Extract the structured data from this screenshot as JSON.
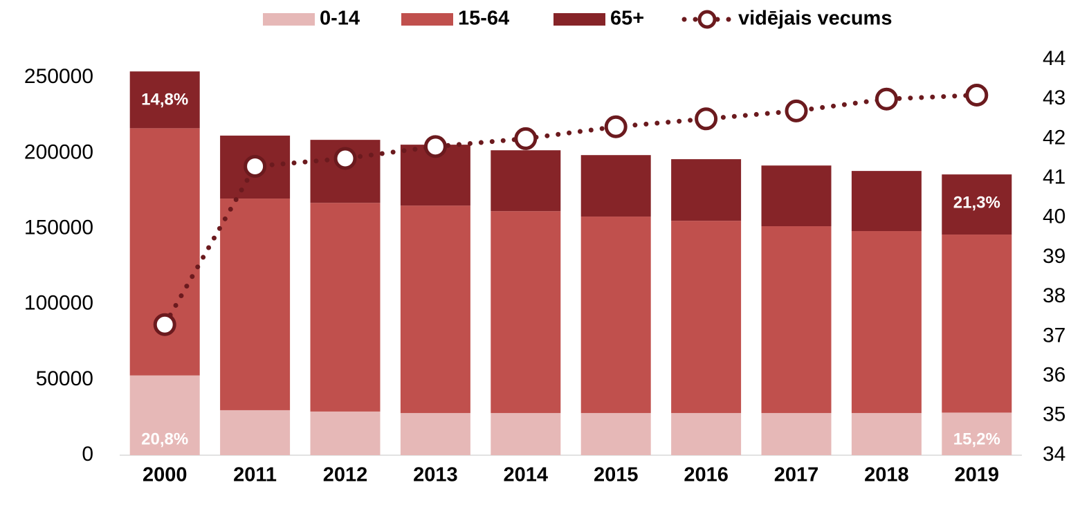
{
  "chart_data": {
    "type": "bar",
    "stacked": true,
    "categories": [
      "2000",
      "2011",
      "2012",
      "2013",
      "2014",
      "2015",
      "2016",
      "2017",
      "2018",
      "2019"
    ],
    "series": [
      {
        "name": "0-14",
        "color": "#e6b8b7",
        "values": [
          52800,
          29800,
          28900,
          27900,
          27900,
          27900,
          27900,
          27900,
          27900,
          28200
        ],
        "percent_labels": [
          "20,8%",
          null,
          null,
          null,
          null,
          null,
          null,
          null,
          null,
          "15,2%"
        ]
      },
      {
        "name": "15-64",
        "color": "#c0504d",
        "values": [
          163700,
          140100,
          138200,
          137400,
          133700,
          130100,
          127300,
          123700,
          120500,
          117900
        ]
      },
      {
        "name": "65+",
        "color": "#862428",
        "values": [
          37600,
          41700,
          41700,
          40300,
          40300,
          40700,
          40800,
          40200,
          39800,
          39800
        ],
        "percent_labels": [
          "14,8%",
          null,
          null,
          null,
          null,
          null,
          null,
          null,
          null,
          "21,3%"
        ]
      },
      {
        "name": "vidējais vecums",
        "type": "line",
        "axis": "y2",
        "color": "#6b1a1e",
        "values": [
          37.3,
          41.3,
          41.5,
          41.8,
          42.0,
          42.3,
          42.5,
          42.7,
          43.0,
          43.1
        ]
      }
    ],
    "ylim": [
      0,
      262000
    ],
    "yticks": [
      0,
      50000,
      100000,
      150000,
      200000,
      250000
    ],
    "y2lim": [
      34,
      44
    ],
    "y2ticks": [
      34,
      35,
      36,
      37,
      38,
      39,
      40,
      41,
      42,
      43,
      44
    ],
    "legend": "top",
    "grid": false
  }
}
